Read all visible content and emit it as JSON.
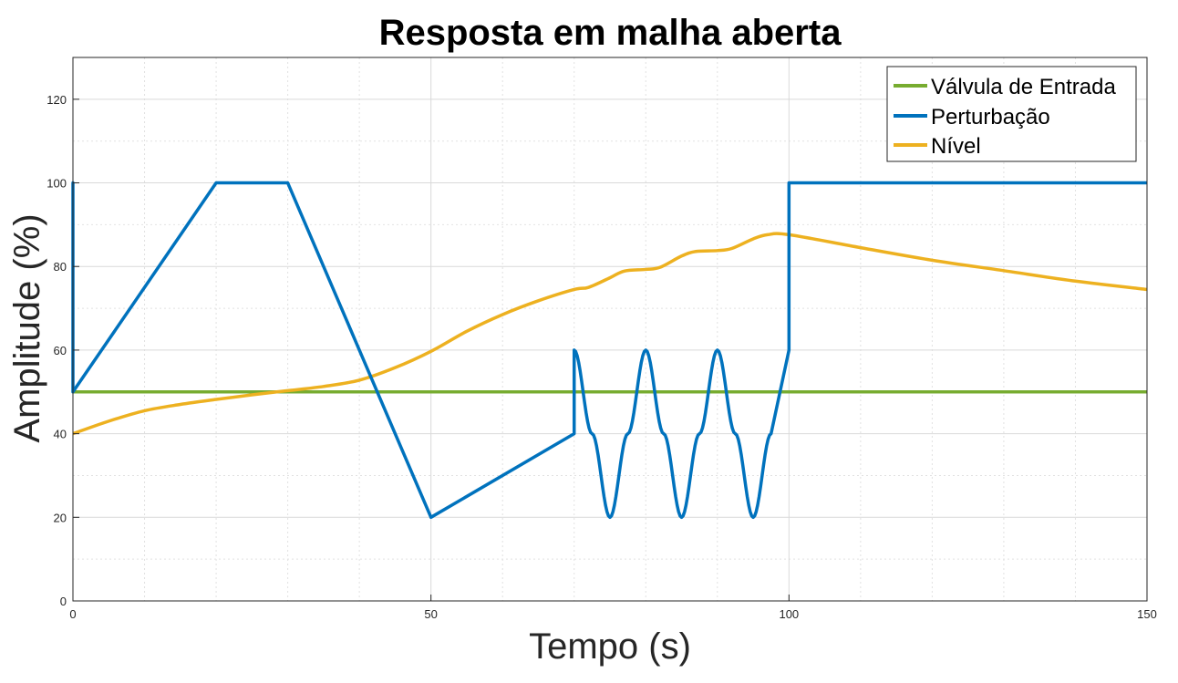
{
  "chart_data": {
    "type": "line",
    "title": "Resposta em malha aberta",
    "xlabel": "Tempo (s)",
    "ylabel": "Amplitude (%)",
    "xlim": [
      0,
      150
    ],
    "ylim": [
      0,
      130
    ],
    "xticks": [
      0,
      50,
      100,
      150
    ],
    "yticks": [
      0,
      20,
      40,
      60,
      80,
      100,
      120
    ],
    "grid": true,
    "minor_grid": true,
    "legend_position": "top-right",
    "series": [
      {
        "name": "Válvula de Entrada",
        "color": "#77AC30",
        "x": [
          0,
          150
        ],
        "y": [
          50,
          50
        ]
      },
      {
        "name": "Perturbação",
        "color": "#0072BD",
        "x": [
          0,
          0,
          0,
          20,
          30,
          50,
          70,
          70,
          72.5,
          75,
          77.5,
          80,
          82.5,
          85,
          87.5,
          90,
          92.5,
          95,
          97.5,
          100,
          100,
          150
        ],
        "y": [
          60,
          100,
          50,
          100,
          100,
          20,
          40,
          60,
          40,
          20,
          40,
          60,
          40,
          20,
          40,
          60,
          40,
          20,
          40,
          60,
          100,
          100
        ]
      },
      {
        "name": "Nível",
        "color": "#EDB120",
        "x": [
          0,
          5,
          10,
          15,
          20,
          25,
          30,
          35,
          40,
          45,
          50,
          55,
          60,
          65,
          70,
          72,
          75,
          77,
          80,
          82,
          85,
          87,
          90,
          92,
          95,
          97,
          100,
          110,
          120,
          130,
          140,
          150
        ],
        "y": [
          40,
          43,
          45.5,
          47,
          48.2,
          49.3,
          50.3,
          51.3,
          52.8,
          55.8,
          59.7,
          64.5,
          68.5,
          71.8,
          74.5,
          75,
          77.3,
          78.9,
          79.3,
          79.8,
          82.5,
          83.6,
          83.8,
          84.3,
          86.6,
          87.6,
          87.6,
          84.5,
          81.5,
          79,
          76.5,
          74.5
        ]
      }
    ]
  }
}
